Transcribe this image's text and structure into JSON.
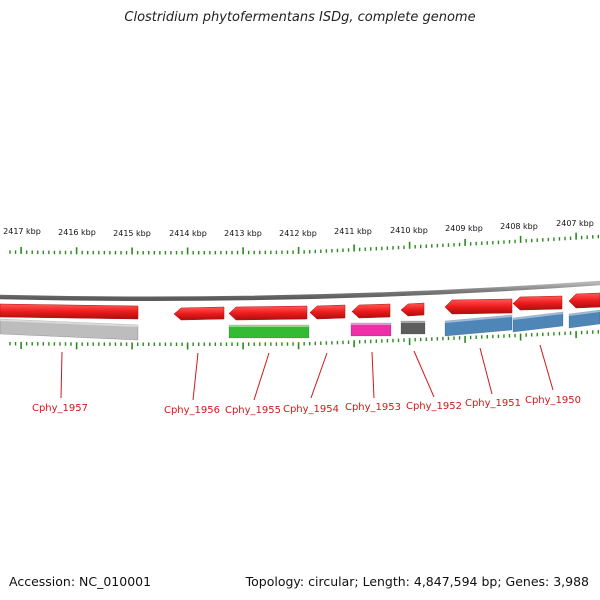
{
  "title": "Clostridium phytofermentans ISDg, complete genome",
  "footer": {
    "accession": "Accession: NC_010001",
    "topology": "Topology: circular; Length: 4,847,594 bp; Genes: 3,988"
  },
  "colors": {
    "forward_gene": "#ee1c1c",
    "backbone": "#8a8a8a",
    "tick": "#2a8a1e",
    "label": "#d01818",
    "leader": "#d01818"
  },
  "kbp_labels": [
    "2417 kbp",
    "2416 kbp",
    "2415 kbp",
    "2414 kbp",
    "2413 kbp",
    "2412 kbp",
    "2411 kbp",
    "2410 kbp",
    "2409 kbp",
    "2408 kbp",
    "2407 kbp"
  ],
  "genes": [
    {
      "label": "Cphy_1957",
      "color": "#bdbdbd"
    },
    {
      "label": "Cphy_1956",
      "color": "#ee1c1c"
    },
    {
      "label": "Cphy_1955",
      "color": "#33bb33"
    },
    {
      "label": "Cphy_1954",
      "color": "#ee1c1c"
    },
    {
      "label": "Cphy_1953",
      "color": "#ee2fa8"
    },
    {
      "label": "Cphy_1952",
      "color": "#5d5d5d"
    },
    {
      "label": "Cphy_1951",
      "color": "#4f86b8"
    },
    {
      "label": "Cphy_1950",
      "color": "#4f86b8"
    }
  ]
}
